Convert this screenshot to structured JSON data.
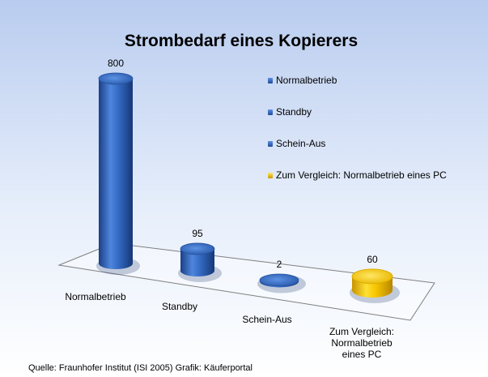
{
  "chart_data": {
    "type": "bar",
    "title": "Strombedarf eines Kopierers",
    "categories": [
      "Normalbetrieb",
      "Standby",
      "Schein-Aus",
      "Zum Vergleich: Normalbetrieb eines PC"
    ],
    "category_label_lines": [
      [
        "Normalbetrieb"
      ],
      [
        "Standby"
      ],
      [
        "Schein-Aus"
      ],
      [
        "Zum Vergleich:",
        "Normalbetrieb",
        "eines PC"
      ]
    ],
    "values": [
      800,
      95,
      2,
      60
    ],
    "value_labels": [
      "800",
      "95",
      "2",
      "60"
    ],
    "colors": [
      "#2f63b6",
      "#2f63b6",
      "#2f63b6",
      "#f2c200"
    ],
    "ylim": [
      0,
      800
    ],
    "legend_position": "right",
    "legend": [
      "Normalbetrieb",
      "Standby",
      "Schein-Aus",
      "Zum Vergleich: Normalbetrieb eines PC"
    ],
    "source": "Quelle: Fraunhofer Institut (ISI 2005) Grafik: Käuferportal"
  }
}
